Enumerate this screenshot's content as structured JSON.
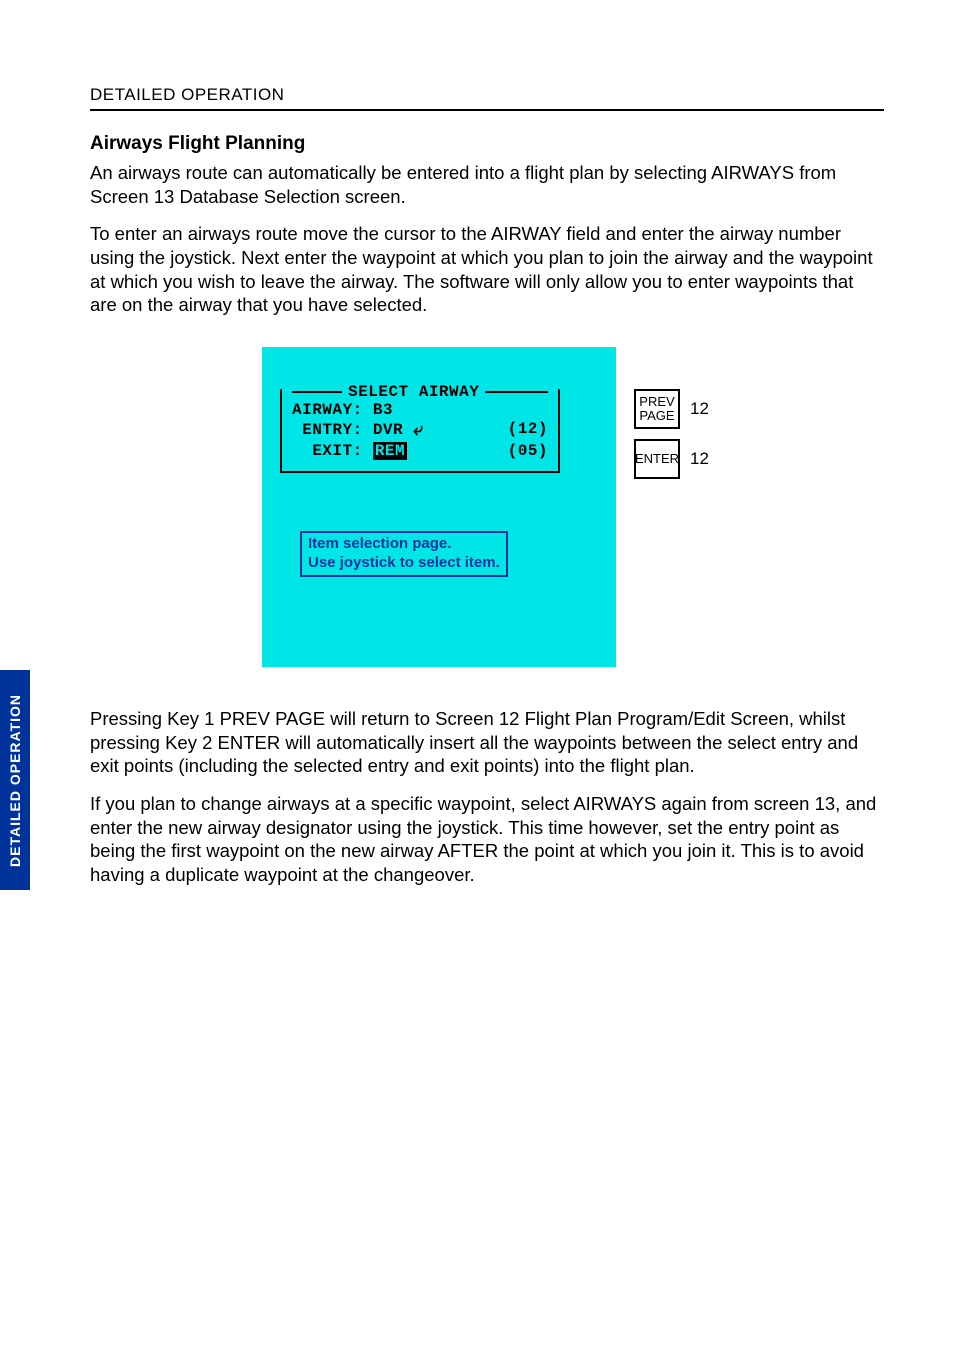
{
  "page": {
    "header": "DETAILED OPERATION",
    "side_tab": "DETAILED OPERATION",
    "title": "Airways Flight Planning",
    "para1": "An airways route can automatically be entered into a flight plan by selecting AIRWAYS from Screen 13 Database Selection screen.",
    "para2": "To enter an airways route move the cursor to the AIRWAY field and enter the airway number using the joystick. Next enter the waypoint at which you plan to join the airway and the waypoint at which you wish to leave the airway. The software will only allow you to enter waypoints that are on the airway that you have selected.",
    "para3": "Pressing Key 1 PREV PAGE will return to Screen 12 Flight Plan Program/Edit Screen, whilst pressing Key 2 ENTER will automatically insert all the waypoints between the select entry and exit points (including the selected entry and exit points) into the flight plan.",
    "para4": "If you plan to change airways at a specific waypoint, select AIRWAYS again from screen 13, and enter the new airway designator using the joystick. This time however, set the entry point as being the first waypoint on the new airway AFTER the point at which you join it. This is to avoid having a duplicate waypoint at the changeover."
  },
  "screen": {
    "bg_color": "#00e5e5",
    "title": "SELECT AIRWAY",
    "airway_label": "AIRWAY:",
    "airway_val": "B3",
    "entry_label": "ENTRY:",
    "entry_val": "DVR",
    "entry_count": "(12)",
    "exit_label": "EXIT:",
    "exit_val": "REM",
    "exit_count": "(05)",
    "hint_line1": "Item selection page.",
    "hint_line2": "Use joystick to select item."
  },
  "keys": [
    {
      "label": "PREV\nPAGE",
      "num": "12"
    },
    {
      "label": "ENTER",
      "num": "12"
    }
  ],
  "colors": {
    "side_tab_bg": "#003399",
    "hint_border": "#003399"
  }
}
